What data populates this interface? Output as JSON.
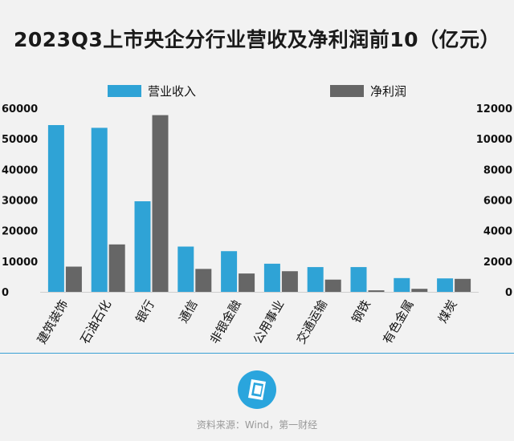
{
  "chart_data": {
    "type": "bar",
    "title": "2023Q3上市央企分行业营收及净利润前10（亿元）",
    "categories": [
      "建筑装饰",
      "石油石化",
      "银行",
      "通信",
      "非银金融",
      "公用事业",
      "交通运输",
      "钢铁",
      "有色金属",
      "煤炭"
    ],
    "series": [
      {
        "name": "营业收入",
        "axis": "left",
        "color": "#2fa3d6",
        "values": [
          54500,
          53600,
          29600,
          14800,
          13300,
          9200,
          8100,
          8100,
          4500,
          4400
        ]
      },
      {
        "name": "净利润",
        "axis": "right",
        "color": "#666666",
        "values": [
          1650,
          3100,
          11550,
          1500,
          1200,
          1350,
          800,
          100,
          200,
          850
        ]
      }
    ],
    "left_axis": {
      "ylim": [
        0,
        60000
      ],
      "ticks": [
        "0",
        "10000",
        "20000",
        "30000",
        "40000",
        "50000",
        "60000"
      ]
    },
    "right_axis": {
      "ylim": [
        0,
        12000
      ],
      "ticks": [
        "0",
        "2000",
        "4000",
        "6000",
        "8000",
        "10000",
        "12000"
      ]
    },
    "legend_position": "top"
  },
  "footer": {
    "source": "资料来源：Wind，第一财经",
    "logo_icon": "yicai-logo-icon"
  }
}
